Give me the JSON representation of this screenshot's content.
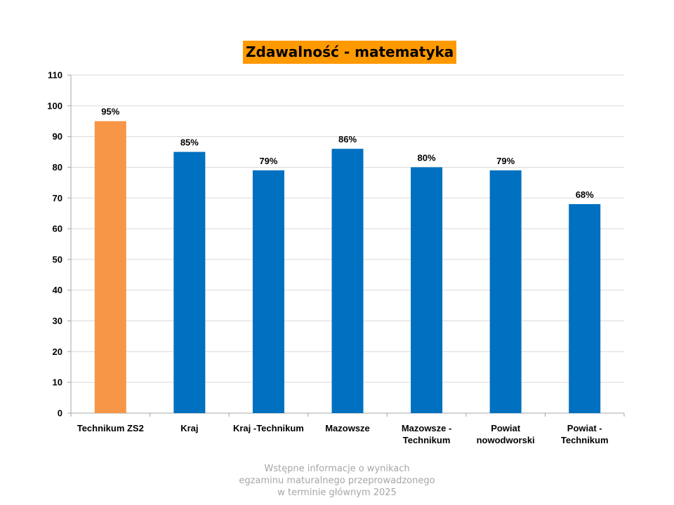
{
  "chart_data": {
    "type": "bar",
    "title": "Zdawalność - matematyka",
    "categories": [
      [
        "Technikum ZS2"
      ],
      [
        "Kraj"
      ],
      [
        "Kraj -Technikum"
      ],
      [
        "Mazowsze"
      ],
      [
        "Mazowsze -",
        "Technikum"
      ],
      [
        "Powiat",
        "nowodworski"
      ],
      [
        "Powiat -",
        "Technikum"
      ]
    ],
    "values": [
      95,
      85,
      79,
      86,
      80,
      79,
      68
    ],
    "data_labels": [
      "95%",
      "85%",
      "79%",
      "86%",
      "80%",
      "79%",
      "68%"
    ],
    "bar_colors": [
      "#f79646",
      "#0070c0",
      "#0070c0",
      "#0070c0",
      "#0070c0",
      "#0070c0",
      "#0070c0"
    ],
    "ylim": [
      0,
      110
    ],
    "yticks": [
      0,
      10,
      20,
      30,
      40,
      50,
      60,
      70,
      80,
      90,
      100,
      110
    ],
    "grid": true,
    "xlabel": "",
    "ylabel": ""
  },
  "colors": {
    "title_background": "#ff9900",
    "highlight_bar": "#f79646",
    "default_bar": "#0070c0",
    "gridline": "#d9d9d9",
    "axis": "#a6a6a6",
    "footer_text": "#a6a6a6"
  },
  "footer": {
    "lines": [
      "Wstępne informacje o wynikach",
      "egzaminu maturalnego przeprowadzonego",
      "w terminie głównym 2025"
    ]
  }
}
